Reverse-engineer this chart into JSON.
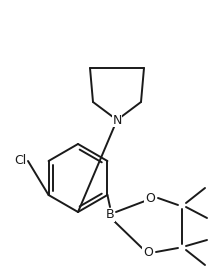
{
  "bg_color": "#ffffff",
  "line_color": "#1a1a1a",
  "line_width": 1.4,
  "figsize": [
    2.12,
    2.76
  ],
  "dpi": 100,
  "xlim": [
    0,
    212
  ],
  "ylim": [
    0,
    276
  ]
}
